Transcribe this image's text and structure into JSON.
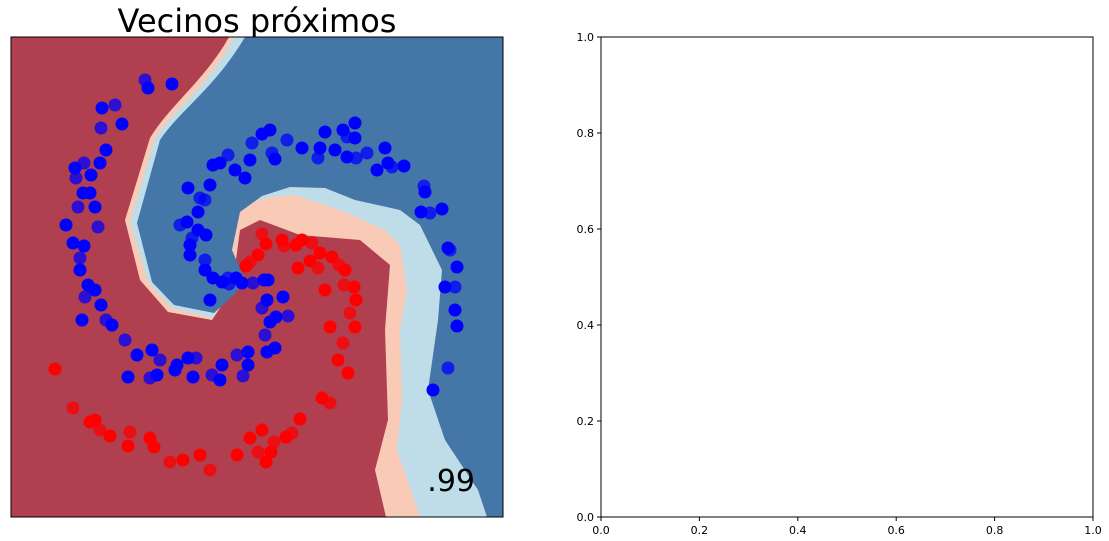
{
  "chart_data": [
    {
      "type": "scatter",
      "title": "Vecinos próximos",
      "annotation": ".99",
      "xaxis": "hidden",
      "yaxis": "hidden",
      "background": "decision-regions",
      "region_colors": {
        "red_strong": "#b03f4f",
        "red_light": "#f9cbb6",
        "blue_light": "#bfdde9",
        "blue_strong": "#4576a8"
      },
      "series": [
        {
          "color": "#0000ff",
          "points": [
            [
              145,
              80
            ],
            [
              148,
              88
            ],
            [
              172,
              84
            ],
            [
              115,
              105
            ],
            [
              102,
              108
            ],
            [
              122,
              124
            ],
            [
              101,
              128
            ],
            [
              106,
              150
            ],
            [
              100,
              163
            ],
            [
              84,
              163
            ],
            [
              75,
              168
            ],
            [
              91,
              175
            ],
            [
              76,
              178
            ],
            [
              90,
              193
            ],
            [
              83,
              193
            ],
            [
              78,
              207
            ],
            [
              95,
              207
            ],
            [
              66,
              225
            ],
            [
              98,
              227
            ],
            [
              73,
              243
            ],
            [
              84,
              246
            ],
            [
              80,
              258
            ],
            [
              80,
              270
            ],
            [
              88,
              285
            ],
            [
              85,
              297
            ],
            [
              95,
              290
            ],
            [
              101,
              305
            ],
            [
              106,
              320
            ],
            [
              82,
              320
            ],
            [
              112,
              325
            ],
            [
              125,
              340
            ],
            [
              137,
              355
            ],
            [
              152,
              350
            ],
            [
              160,
              360
            ],
            [
              177,
              365
            ],
            [
              188,
              358
            ],
            [
              196,
              358
            ],
            [
              175,
              370
            ],
            [
              157,
              375
            ],
            [
              150,
              378
            ],
            [
              128,
              377
            ],
            [
              193,
              377
            ],
            [
              212,
              375
            ],
            [
              220,
              380
            ],
            [
              222,
              365
            ],
            [
              237,
              355
            ],
            [
              248,
              352
            ],
            [
              248,
              365
            ],
            [
              243,
              376
            ],
            [
              267,
              352
            ],
            [
              275,
              348
            ],
            [
              265,
              335
            ],
            [
              270,
              322
            ],
            [
              276,
              317
            ],
            [
              288,
              316
            ],
            [
              283,
              297
            ],
            [
              267,
              300
            ],
            [
              262,
              308
            ],
            [
              210,
              300
            ],
            [
              222,
              282
            ],
            [
              229,
              284
            ],
            [
              236,
              278
            ],
            [
              242,
              283
            ],
            [
              253,
              283
            ],
            [
              264,
              280
            ],
            [
              268,
              280
            ],
            [
              228,
              278
            ],
            [
              213,
              278
            ],
            [
              205,
              270
            ],
            [
              205,
              260
            ],
            [
              190,
              255
            ],
            [
              190,
              245
            ],
            [
              192,
              238
            ],
            [
              198,
              230
            ],
            [
              206,
              235
            ],
            [
              180,
              225
            ],
            [
              187,
              222
            ],
            [
              198,
              212
            ],
            [
              205,
              200
            ],
            [
              188,
              188
            ],
            [
              210,
              185
            ],
            [
              200,
              198
            ],
            [
              213,
              165
            ],
            [
              220,
              163
            ],
            [
              228,
              155
            ],
            [
              235,
              170
            ],
            [
              245,
              178
            ],
            [
              252,
              143
            ],
            [
              262,
              134
            ],
            [
              270,
              130
            ],
            [
              272,
              153
            ],
            [
              275,
              159
            ],
            [
              250,
              160
            ],
            [
              287,
              140
            ],
            [
              302,
              148
            ],
            [
              320,
              148
            ],
            [
              318,
              158
            ],
            [
              325,
              132
            ],
            [
              335,
              150
            ],
            [
              347,
              137
            ],
            [
              355,
              138
            ],
            [
              347,
              157
            ],
            [
              356,
              158
            ],
            [
              343,
              130
            ],
            [
              355,
              123
            ],
            [
              367,
              153
            ],
            [
              385,
              148
            ],
            [
              388,
              163
            ],
            [
              392,
              167
            ],
            [
              377,
              170
            ],
            [
              404,
              166
            ],
            [
              424,
              186
            ],
            [
              425,
              192
            ],
            [
              421,
              212
            ],
            [
              430,
              213
            ],
            [
              442,
              209
            ],
            [
              448,
              248
            ],
            [
              450,
              250
            ],
            [
              457,
              267
            ],
            [
              445,
              287
            ],
            [
              455,
              287
            ],
            [
              455,
              310
            ],
            [
              457,
              326
            ],
            [
              448,
              368
            ],
            [
              433,
              390
            ]
          ]
        },
        {
          "color": "#ff0000",
          "points": [
            [
              262,
              234
            ],
            [
              266,
              244
            ],
            [
              282,
              240
            ],
            [
              284,
              246
            ],
            [
              296,
              245
            ],
            [
              302,
              240
            ],
            [
              312,
              243
            ],
            [
              320,
              253
            ],
            [
              332,
              257
            ],
            [
              339,
              265
            ],
            [
              345,
              270
            ],
            [
              298,
              268
            ],
            [
              318,
              268
            ],
            [
              310,
              261
            ],
            [
              325,
              290
            ],
            [
              344,
              285
            ],
            [
              354,
              287
            ],
            [
              356,
              300
            ],
            [
              350,
              313
            ],
            [
              355,
              327
            ],
            [
              330,
              327
            ],
            [
              343,
              343
            ],
            [
              338,
              360
            ],
            [
              348,
              373
            ],
            [
              330,
              403
            ],
            [
              322,
              398
            ],
            [
              300,
              419
            ],
            [
              292,
              433
            ],
            [
              286,
              437
            ],
            [
              262,
              430
            ],
            [
              274,
              442
            ],
            [
              271,
              452
            ],
            [
              266,
              462
            ],
            [
              258,
              452
            ],
            [
              250,
              438
            ],
            [
              237,
              455
            ],
            [
              210,
              470
            ],
            [
              200,
              455
            ],
            [
              183,
              460
            ],
            [
              170,
              462
            ],
            [
              154,
              447
            ],
            [
              150,
              438
            ],
            [
              130,
              432
            ],
            [
              128,
              446
            ],
            [
              110,
              436
            ],
            [
              100,
              430
            ],
            [
              95,
              420
            ],
            [
              90,
              422
            ],
            [
              73,
              408
            ],
            [
              55,
              369
            ],
            [
              246,
              266
            ],
            [
              250,
              262
            ],
            [
              258,
              255
            ]
          ]
        }
      ]
    },
    {
      "type": "scatter",
      "title": "",
      "xlim": [
        0,
        1
      ],
      "ylim": [
        0,
        1
      ],
      "xticks": [
        "0.0",
        "0.2",
        "0.4",
        "0.6",
        "0.8",
        "1.0"
      ],
      "yticks": [
        "0.0",
        "0.2",
        "0.4",
        "0.6",
        "0.8",
        "1.0"
      ],
      "series": []
    }
  ]
}
